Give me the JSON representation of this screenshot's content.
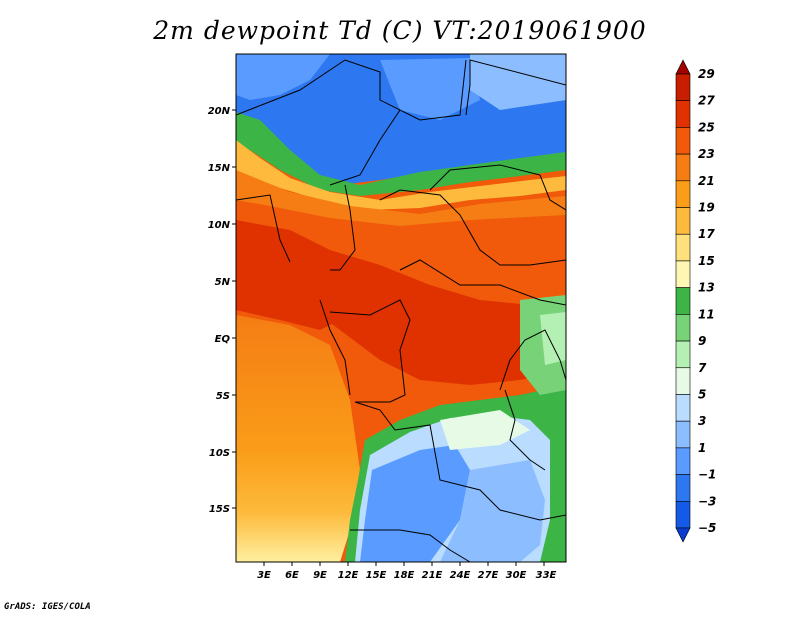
{
  "title": "2m dewpoint Td (C) VT:2019061900",
  "credit": "GrADS: IGES/COLA",
  "map": {
    "lon_labels": [
      "3E",
      "6E",
      "9E",
      "12E",
      "15E",
      "18E",
      "21E",
      "24E",
      "27E",
      "30E",
      "33E"
    ],
    "lat_labels": [
      "20N",
      "15N",
      "10N",
      "5N",
      "EQ",
      "5S",
      "10S",
      "15S"
    ]
  },
  "colorbar": {
    "labels": [
      "29",
      "27",
      "25",
      "23",
      "21",
      "19",
      "17",
      "15",
      "13",
      "11",
      "9",
      "7",
      "5",
      "3",
      "1",
      "−1",
      "−3",
      "−5"
    ],
    "colors": [
      "#a50000",
      "#c81e00",
      "#e03200",
      "#f05a0a",
      "#f57d14",
      "#fa9d19",
      "#fdba3c",
      "#fee07d",
      "#fef7b4",
      "#3cb446",
      "#78d278",
      "#b4f0b4",
      "#e6fae6",
      "#b9dcff",
      "#8cbeff",
      "#5a9bff",
      "#2d78f0",
      "#145ae6",
      "#0a3cd2"
    ]
  }
}
